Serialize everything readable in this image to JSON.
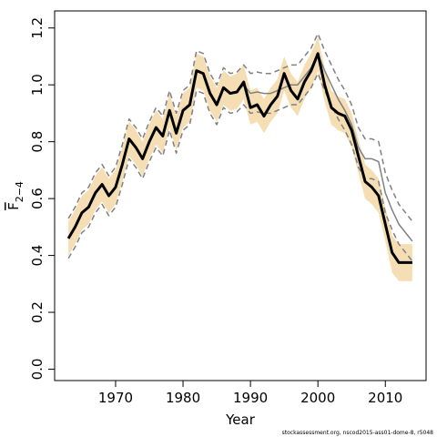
{
  "chart_data": {
    "type": "line",
    "xlabel": "Year",
    "ylabel": "F",
    "ylabel_sub": "2−4",
    "footnote": "stockassessment.org, nscod2015-ass01-dome-8, r5048",
    "x": [
      1963,
      1964,
      1965,
      1966,
      1967,
      1968,
      1969,
      1970,
      1971,
      1972,
      1973,
      1974,
      1975,
      1976,
      1977,
      1978,
      1979,
      1980,
      1981,
      1982,
      1983,
      1984,
      1985,
      1986,
      1987,
      1988,
      1989,
      1990,
      1991,
      1992,
      1993,
      1994,
      1995,
      1996,
      1997,
      1998,
      1999,
      2000,
      2001,
      2002,
      2003,
      2004,
      2005,
      2006,
      2007,
      2008,
      2009,
      2010,
      2011,
      2012,
      2013,
      2014
    ],
    "band": {
      "color": "#f5deb3",
      "upper": [
        0.52,
        0.56,
        0.61,
        0.63,
        0.68,
        0.71,
        0.67,
        0.7,
        0.78,
        0.87,
        0.84,
        0.8,
        0.86,
        0.91,
        0.88,
        0.97,
        0.89,
        0.97,
        0.99,
        1.11,
        1.1,
        1.03,
        0.99,
        1.05,
        1.03,
        1.04,
        1.07,
        0.98,
        0.99,
        0.95,
        0.99,
        1.02,
        1.1,
        1.04,
        1.01,
        1.07,
        1.11,
        1.17,
        1.06,
        0.98,
        0.96,
        0.95,
        0.9,
        0.81,
        0.72,
        0.7,
        0.67,
        0.57,
        0.47,
        0.44,
        0.44,
        0.44
      ],
      "lower": [
        0.4,
        0.44,
        0.49,
        0.51,
        0.56,
        0.59,
        0.55,
        0.58,
        0.66,
        0.75,
        0.72,
        0.68,
        0.74,
        0.79,
        0.76,
        0.85,
        0.77,
        0.85,
        0.87,
        0.99,
        0.98,
        0.91,
        0.87,
        0.93,
        0.91,
        0.915,
        0.95,
        0.86,
        0.87,
        0.83,
        0.87,
        0.9,
        0.98,
        0.92,
        0.89,
        0.95,
        0.99,
        1.05,
        0.94,
        0.86,
        0.84,
        0.83,
        0.78,
        0.69,
        0.6,
        0.58,
        0.55,
        0.45,
        0.34,
        0.31,
        0.31,
        0.31
      ]
    },
    "series": [
      {
        "color": "#808080",
        "width": 1.5,
        "dash": true,
        "values": [
          0.53,
          0.57,
          0.62,
          0.64,
          0.69,
          0.72,
          0.68,
          0.71,
          0.79,
          0.88,
          0.85,
          0.81,
          0.87,
          0.92,
          0.89,
          0.98,
          0.9,
          0.98,
          1.0,
          1.12,
          1.11,
          1.04,
          1.0,
          1.06,
          1.04,
          1.045,
          1.07,
          1.04,
          1.045,
          1.04,
          1.04,
          1.05,
          1.06,
          1.07,
          1.07,
          1.1,
          1.13,
          1.18,
          1.12,
          1.07,
          1.02,
          0.98,
          0.93,
          0.85,
          0.81,
          0.81,
          0.8,
          0.69,
          0.63,
          0.58,
          0.55,
          0.52
        ]
      },
      {
        "color": "#808080",
        "width": 1.5,
        "dash": true,
        "values": [
          0.39,
          0.43,
          0.48,
          0.5,
          0.55,
          0.58,
          0.54,
          0.57,
          0.65,
          0.74,
          0.71,
          0.67,
          0.73,
          0.78,
          0.75,
          0.84,
          0.76,
          0.84,
          0.86,
          0.98,
          0.97,
          0.9,
          0.86,
          0.92,
          0.9,
          0.905,
          0.93,
          0.9,
          0.905,
          0.9,
          0.9,
          0.91,
          0.92,
          0.93,
          0.93,
          0.96,
          0.99,
          1.04,
          0.98,
          0.93,
          0.88,
          0.84,
          0.79,
          0.71,
          0.67,
          0.67,
          0.66,
          0.55,
          0.49,
          0.44,
          0.41,
          0.38
        ]
      },
      {
        "color": "#808080",
        "width": 1.5,
        "dash": false,
        "values": [
          0.46,
          0.5,
          0.55,
          0.57,
          0.62,
          0.65,
          0.61,
          0.64,
          0.72,
          0.81,
          0.78,
          0.74,
          0.8,
          0.85,
          0.82,
          0.91,
          0.83,
          0.91,
          0.93,
          1.05,
          1.04,
          0.97,
          0.93,
          0.99,
          0.97,
          0.975,
          1.0,
          0.97,
          0.975,
          0.97,
          0.97,
          0.98,
          0.99,
          1.0,
          1.0,
          1.03,
          1.06,
          1.11,
          1.05,
          1.0,
          0.95,
          0.91,
          0.86,
          0.78,
          0.74,
          0.74,
          0.73,
          0.62,
          0.56,
          0.51,
          0.48,
          0.45
        ]
      },
      {
        "color": "#000000",
        "width": 3,
        "dash": false,
        "values": [
          0.46,
          0.5,
          0.55,
          0.57,
          0.62,
          0.65,
          0.61,
          0.64,
          0.72,
          0.81,
          0.78,
          0.74,
          0.8,
          0.85,
          0.82,
          0.91,
          0.83,
          0.91,
          0.93,
          1.05,
          1.04,
          0.97,
          0.93,
          0.99,
          0.97,
          0.975,
          1.01,
          0.92,
          0.93,
          0.89,
          0.93,
          0.96,
          1.04,
          0.98,
          0.95,
          1.01,
          1.05,
          1.11,
          1.0,
          0.92,
          0.9,
          0.89,
          0.84,
          0.75,
          0.66,
          0.64,
          0.61,
          0.51,
          0.41,
          0.375,
          0.375,
          0.375
        ]
      }
    ],
    "xlim": [
      1960.96,
      2016.04
    ],
    "xticks": [
      1970,
      1980,
      1990,
      2000,
      2010
    ],
    "ylim": [
      -0.04,
      1.26
    ],
    "yticks": [
      {
        "value": 0,
        "label": "0.0"
      },
      0.2,
      0.4,
      0.6,
      0.8,
      {
        "value": 1,
        "label": "1.0"
      },
      1.2
    ]
  }
}
